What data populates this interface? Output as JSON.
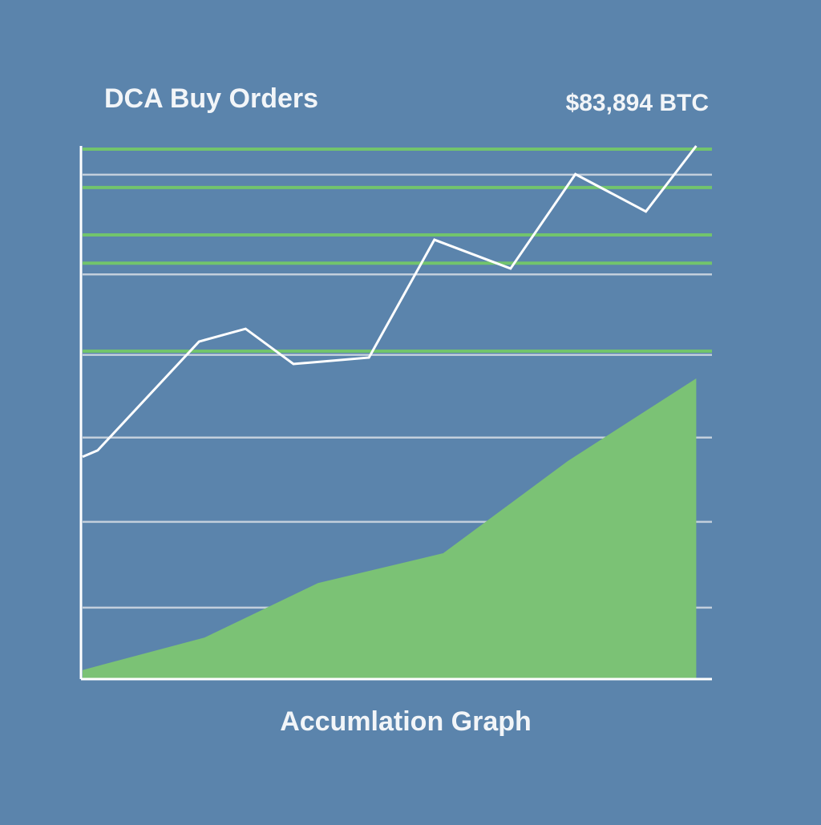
{
  "chart_data": {
    "type": "line",
    "title": "DCA Buy Orders",
    "annotation": "$83,894 BTC",
    "x_label": "Accumlation Graph",
    "xlim": [
      0,
      100
    ],
    "ylim": [
      0,
      100
    ],
    "yticks": [
      13.4,
      29.5,
      45.3,
      60.8,
      75.9,
      94.6
    ],
    "grid": true,
    "buy_orders": {
      "color": "#72c46c",
      "values": [
        99.4,
        92.2,
        83.3,
        78.0,
        61.5
      ]
    },
    "series": [
      {
        "type": "line",
        "color": "#ffffff",
        "x": [
          0,
          2.4,
          18.5,
          25.9,
          33.5,
          45.5,
          55.9,
          68.0,
          78.3,
          89.5,
          97.5
        ],
        "values": [
          41.7,
          42.9,
          63.3,
          65.7,
          59.1,
          60.3,
          82.4,
          77.0,
          94.7,
          87.7,
          100
        ]
      },
      {
        "type": "area",
        "color": "#7bc275",
        "x": [
          0,
          19.4,
          37.4,
          57.3,
          77.1,
          97.5
        ],
        "values": [
          1.7,
          7.8,
          18.0,
          23.6,
          40.9,
          56.4
        ]
      }
    ]
  }
}
